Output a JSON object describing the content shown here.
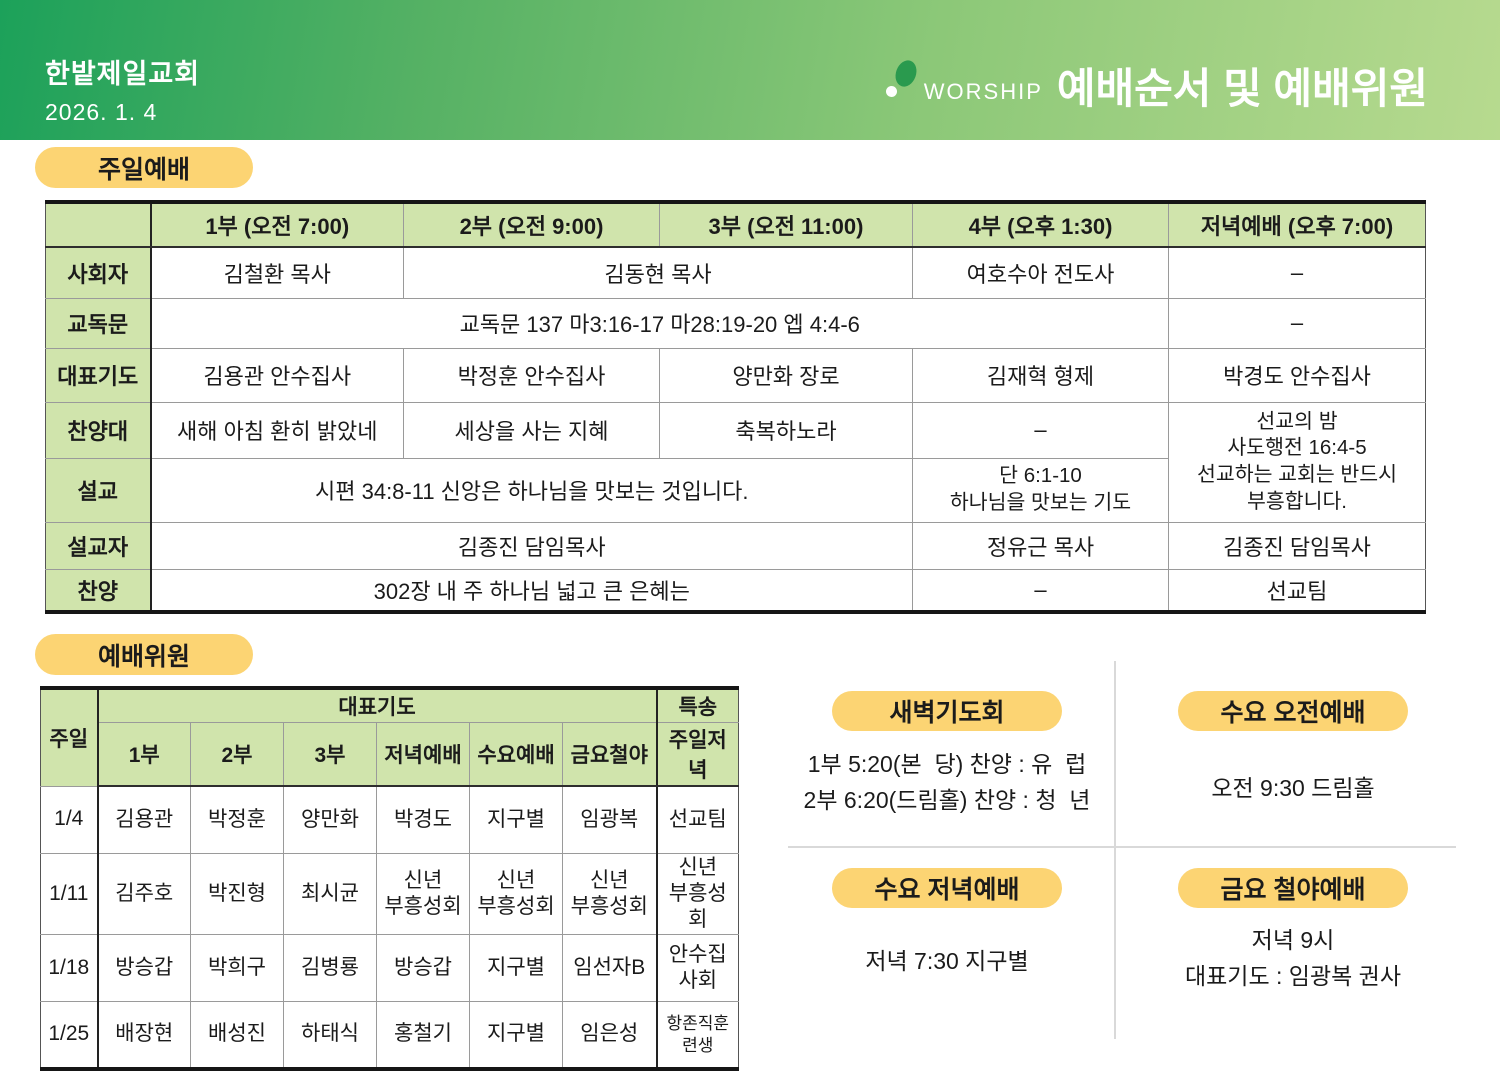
{
  "header": {
    "church_name": "한밭제일교회",
    "date": "2026. 1. 4",
    "worship_label": "WORSHIP",
    "page_title": "예배순서 및 예배위원"
  },
  "colors": {
    "header_gradient_left": "#1ca15a",
    "header_gradient_right": "#b7da8f",
    "pill_yellow": "#fcd473",
    "table_header_green": "#d0e4ac",
    "logo_dot_green": "#2a9a4e"
  },
  "sunday_worship": {
    "section_title": "주일예배",
    "columns": [
      "",
      "1부 (오전 7:00)",
      "2부 (오전 9:00)",
      "3부 (오전 11:00)",
      "4부 (오후 1:30)",
      "저녁예배 (오후 7:00)"
    ],
    "rows": {
      "moderator": {
        "label": "사회자",
        "p1": "김철환 목사",
        "p2_3": "김동현 목사",
        "p4": "여호수아 전도사",
        "evening": "–"
      },
      "responsive_reading": {
        "label": "교독문",
        "p1_4": "교독문 137 마3:16-17 마28:19-20 엡 4:4-6",
        "evening": "–"
      },
      "rep_prayer": {
        "label": "대표기도",
        "p1": "김용관 안수집사",
        "p2": "박정훈 안수집사",
        "p3": "양만화 장로",
        "p4": "김재혁 형제",
        "evening": "박경도 안수집사"
      },
      "choir": {
        "label": "찬양대",
        "p1": "새해 아침 환히 밝았네",
        "p2": "세상을 사는 지혜",
        "p3": "축복하노라",
        "p4": "–"
      },
      "evening_mission": {
        "lines": [
          "선교의 밤",
          "사도행전 16:4-5",
          "선교하는 교회는 반드시",
          "부흥합니다."
        ]
      },
      "sermon": {
        "label": "설교",
        "p1_3": "시편 34:8-11 신앙은 하나님을 맛보는 것입니다.",
        "p4_lines": [
          "단 6:1-10",
          "하나님을 맛보는 기도"
        ]
      },
      "preacher": {
        "label": "설교자",
        "p1_3": "김종진 담임목사",
        "p4": "정유근 목사",
        "evening": "김종진 담임목사"
      },
      "hymn": {
        "label": "찬양",
        "p1_3": "302장 내 주 하나님 넓고 큰 은혜는",
        "p4": "–",
        "evening": "선교팀"
      }
    }
  },
  "committee": {
    "section_title": "예배위원",
    "header": {
      "week": "주일",
      "group": "대표기도",
      "special": "특송",
      "subcols": [
        "1부",
        "2부",
        "3부",
        "저녁예배",
        "수요예배",
        "금요철야",
        "주일저녁"
      ]
    },
    "rows": [
      {
        "date": "1/4",
        "cells": [
          [
            "김용관"
          ],
          [
            "박정훈"
          ],
          [
            "양만화"
          ],
          [
            "박경도"
          ],
          [
            "지구별"
          ],
          [
            "임광복"
          ],
          [
            "선교팀"
          ]
        ]
      },
      {
        "date": "1/11",
        "cells": [
          [
            "김주호"
          ],
          [
            "박진형"
          ],
          [
            "최시균"
          ],
          [
            "신년",
            "부흥성회"
          ],
          [
            "신년",
            "부흥성회"
          ],
          [
            "신년",
            "부흥성회"
          ],
          [
            "신년",
            "부흥성회"
          ]
        ]
      },
      {
        "date": "1/18",
        "cells": [
          [
            "방승갑"
          ],
          [
            "박희구"
          ],
          [
            "김병룡"
          ],
          [
            "방승갑"
          ],
          [
            "지구별"
          ],
          [
            "임선자B"
          ],
          [
            "안수집사회"
          ]
        ]
      },
      {
        "date": "1/25",
        "cells": [
          [
            "배장현"
          ],
          [
            "배성진"
          ],
          [
            "하태식"
          ],
          [
            "홍철기"
          ],
          [
            "지구별"
          ],
          [
            "임은성"
          ],
          [
            "항존직훈련생"
          ]
        ]
      }
    ]
  },
  "info_boxes": [
    {
      "title": "새벽기도회",
      "lines": [
        "1부 5:20(본  당) 찬양 : 유  럽",
        "2부 6:20(드림홀) 찬양 : 청  년"
      ]
    },
    {
      "title": "수요 오전예배",
      "lines": [
        "오전 9:30 드림홀"
      ]
    },
    {
      "title": "수요 저녁예배",
      "lines": [
        "저녁 7:30 지구별"
      ]
    },
    {
      "title": "금요 철야예배",
      "lines": [
        "저녁 9시",
        "대표기도 : 임광복 권사"
      ]
    }
  ]
}
